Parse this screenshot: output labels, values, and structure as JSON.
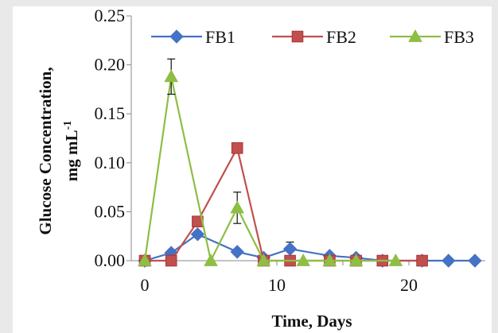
{
  "chart_data": {
    "type": "line",
    "xlabel": "Time, Days",
    "ylabel_line1": "Glucose Concentration,",
    "ylabel_line2": "mg mL",
    "ylabel_superscript": "-1",
    "xlim": [
      0,
      25
    ],
    "ylim": [
      0,
      0.25
    ],
    "x_ticks": [
      0,
      10,
      20
    ],
    "x_tick_labels": [
      "0",
      "10",
      "20"
    ],
    "y_ticks": [
      0,
      0.05,
      0.1,
      0.15,
      0.2,
      0.25
    ],
    "y_tick_labels": [
      "0.00",
      "0.05",
      "0.10",
      "0.15",
      "0.20",
      "0.25"
    ],
    "grid": false,
    "legend_position": "top",
    "series": [
      {
        "name": "FB1",
        "color": "#4472c4",
        "marker": "diamond",
        "x": [
          0,
          2,
          4,
          7,
          9,
          11,
          14,
          16,
          18,
          21,
          23,
          25
        ],
        "y": [
          0.0,
          0.008,
          0.027,
          0.009,
          0.003,
          0.012,
          0.005,
          0.003,
          0.0,
          0.0,
          0.0,
          0.0
        ],
        "err": [
          0,
          0,
          0.003,
          0,
          0,
          0.007,
          0,
          0,
          0,
          0,
          0,
          0
        ]
      },
      {
        "name": "FB2",
        "color": "#c0504d",
        "marker": "square",
        "x": [
          0,
          2,
          4,
          7,
          9,
          11,
          14,
          16,
          18,
          21
        ],
        "y": [
          0.0,
          0.0,
          0.04,
          0.115,
          0.0,
          0.0,
          0.0,
          0.0,
          0.0,
          0.0
        ],
        "err": [
          0,
          0,
          0.004,
          0,
          0,
          0,
          0,
          0,
          0,
          0
        ]
      },
      {
        "name": "FB3",
        "color": "#8ebe44",
        "marker": "triangle",
        "x": [
          0,
          2,
          5,
          7,
          9,
          12,
          14,
          16,
          19
        ],
        "y": [
          0.0,
          0.188,
          0.0,
          0.054,
          0.0,
          0.0,
          0.0,
          0.0,
          0.0
        ],
        "err": [
          0,
          0.018,
          0,
          0.016,
          0,
          0,
          0,
          0,
          0
        ]
      }
    ]
  }
}
